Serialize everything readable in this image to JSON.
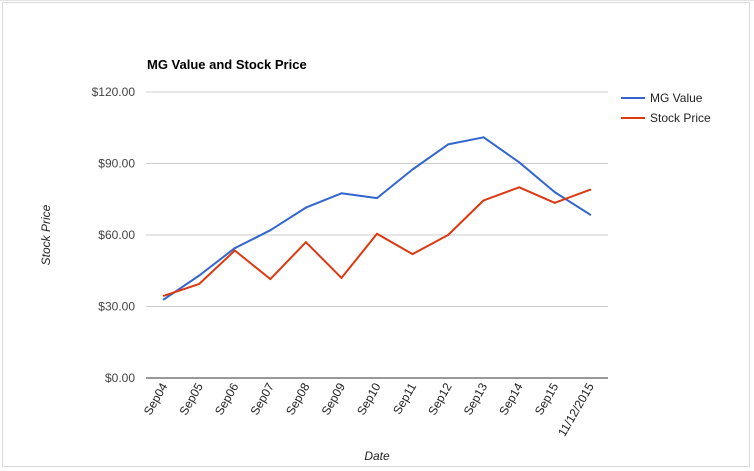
{
  "chart_data": {
    "type": "line",
    "title": "MG Value and Stock Price",
    "xlabel": "Date",
    "ylabel": "Stock Price",
    "categories": [
      "Sep04",
      "Sep05",
      "Sep06",
      "Sep07",
      "Sep08",
      "Sep09",
      "Sep10",
      "Sep11",
      "Sep12",
      "Sep13",
      "Sep14",
      "Sep15",
      "11/12/2015"
    ],
    "ylim": [
      0,
      120
    ],
    "yticks": [
      "$0.00",
      "$30.00",
      "$60.00",
      "$90.00",
      "$120.00"
    ],
    "grid": true,
    "legend_position": "right",
    "series": [
      {
        "name": "MG Value",
        "color": "#3366cc",
        "values": [
          33,
          43,
          54.5,
          62,
          71.5,
          77.5,
          75.5,
          87.5,
          98,
          101,
          90.5,
          78,
          68.5
        ]
      },
      {
        "name": "Stock Price",
        "color": "#dc3912",
        "values": [
          34.5,
          39.5,
          53.5,
          41.5,
          57,
          42,
          60.5,
          52,
          60,
          74.5,
          80,
          73.5,
          79
        ]
      }
    ]
  }
}
